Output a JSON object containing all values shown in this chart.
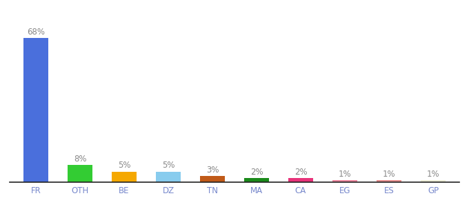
{
  "categories": [
    "FR",
    "OTH",
    "BE",
    "DZ",
    "TN",
    "MA",
    "CA",
    "EG",
    "ES",
    "GP"
  ],
  "values": [
    68,
    8,
    5,
    5,
    3,
    2,
    2,
    1,
    1,
    1
  ],
  "labels": [
    "68%",
    "8%",
    "5%",
    "5%",
    "3%",
    "2%",
    "2%",
    "1%",
    "1%",
    "1%"
  ],
  "bar_colors": [
    "#4a6fdc",
    "#33cc33",
    "#f5a800",
    "#88ccee",
    "#c05a18",
    "#1a8a1a",
    "#e8337a",
    "#ee88a0",
    "#e89090",
    "#eeeed8"
  ],
  "background_color": "#ffffff",
  "ylim": [
    0,
    78
  ],
  "label_fontsize": 8.5,
  "tick_fontsize": 8.5,
  "label_color": "#888888",
  "tick_color": "#7788cc",
  "bar_width": 0.55
}
